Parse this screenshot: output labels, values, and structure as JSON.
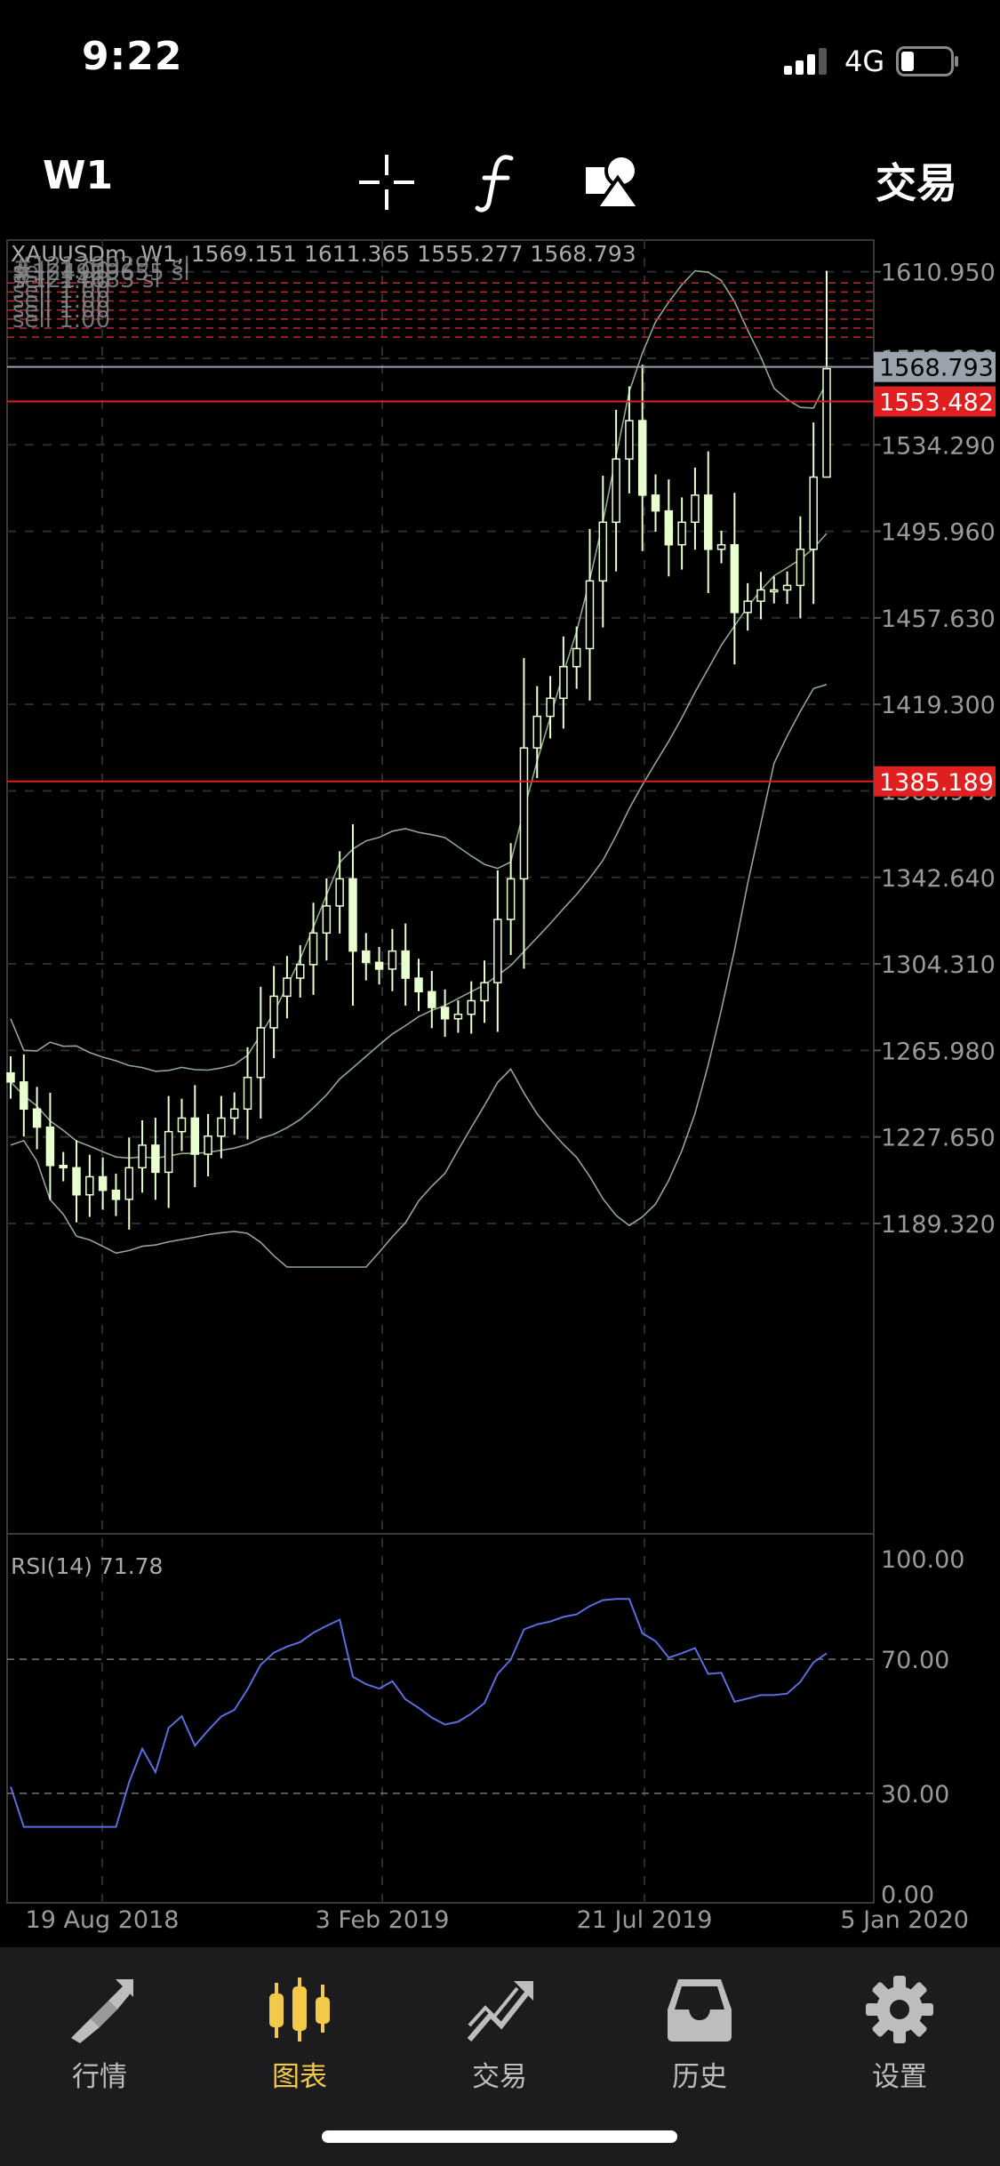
{
  "status_bar": {
    "time": "9:22",
    "network": "4G"
  },
  "toolbar": {
    "period": "W1",
    "crosshair_icon": "crosshair-icon",
    "indicator_icon": "function-icon",
    "objects_icon": "shapes-icon",
    "trade_label": "交易"
  },
  "chart": {
    "header": "XAUUSDm, W1, 1569.151 1611.365 1555.277 1568.793",
    "overlay_labels": [
      "sell 1.00",
      "sell 1.00",
      "sell 1.00",
      "sell 1.00",
      "sell 1.00",
      "sell 1.00",
      "#121299291 sl",
      "#124999655 sl",
      "#1214683 sl"
    ],
    "price_ticks": [
      "1610.950",
      "1572.620",
      "1534.290",
      "1495.960",
      "1457.630",
      "1419.300",
      "1380.970",
      "1342.640",
      "1304.310",
      "1265.980",
      "1227.650",
      "1189.320"
    ],
    "price_tags": [
      {
        "label": "1568.793",
        "value": 1568.793,
        "color": "#9aa3ad",
        "text_color": "#000000"
      },
      {
        "label": "1553.482",
        "value": 1553.482,
        "color": "#e02020",
        "text_color": "#ffffff"
      },
      {
        "label": "1385.189",
        "value": 1385.189,
        "color": "#e02020",
        "text_color": "#ffffff"
      }
    ],
    "date_labels": [
      "19 Aug 2018",
      "3 Feb 2019",
      "21 Jul 2019",
      "5 Jan 2020"
    ],
    "rsi_label": "RSI(14) 71.78",
    "rsi_ticks": [
      "100.00",
      "70.00",
      "30.00",
      "0.00"
    ],
    "colors": {
      "candle": "#e8ffd0",
      "band": "#8fa88f",
      "rsi_line": "#5a6ee0",
      "order_line": "#c02a2a"
    }
  },
  "chart_data": {
    "type": "candlestick",
    "symbol": "XAUUSDm",
    "timeframe": "W1",
    "ylim": [
      1170,
      1625
    ],
    "x_range": [
      "2018-06-24",
      "2020-01-05"
    ],
    "close_approx": [
      1252,
      1240,
      1232,
      1215,
      1214,
      1202,
      1210,
      1204,
      1200,
      1214,
      1224,
      1212,
      1230,
      1236,
      1220,
      1228,
      1236,
      1240,
      1254,
      1276,
      1290,
      1298,
      1304,
      1318,
      1330,
      1342,
      1310,
      1305,
      1302,
      1310,
      1298,
      1292,
      1285,
      1280,
      1282,
      1288,
      1296,
      1324,
      1342,
      1400,
      1414,
      1422,
      1436,
      1444,
      1474,
      1500,
      1528,
      1545,
      1512,
      1505,
      1490,
      1500,
      1512,
      1488,
      1490,
      1460,
      1465,
      1470,
      1470,
      1472,
      1488,
      1520,
      1568
    ]
  },
  "tabs": [
    {
      "label": "行情",
      "icon": "quotes-icon",
      "active": false
    },
    {
      "label": "图表",
      "icon": "candles-icon",
      "active": true
    },
    {
      "label": "交易",
      "icon": "trade-trend-icon",
      "active": false
    },
    {
      "label": "历史",
      "icon": "history-inbox-icon",
      "active": false
    },
    {
      "label": "设置",
      "icon": "gear-icon",
      "active": false
    }
  ]
}
